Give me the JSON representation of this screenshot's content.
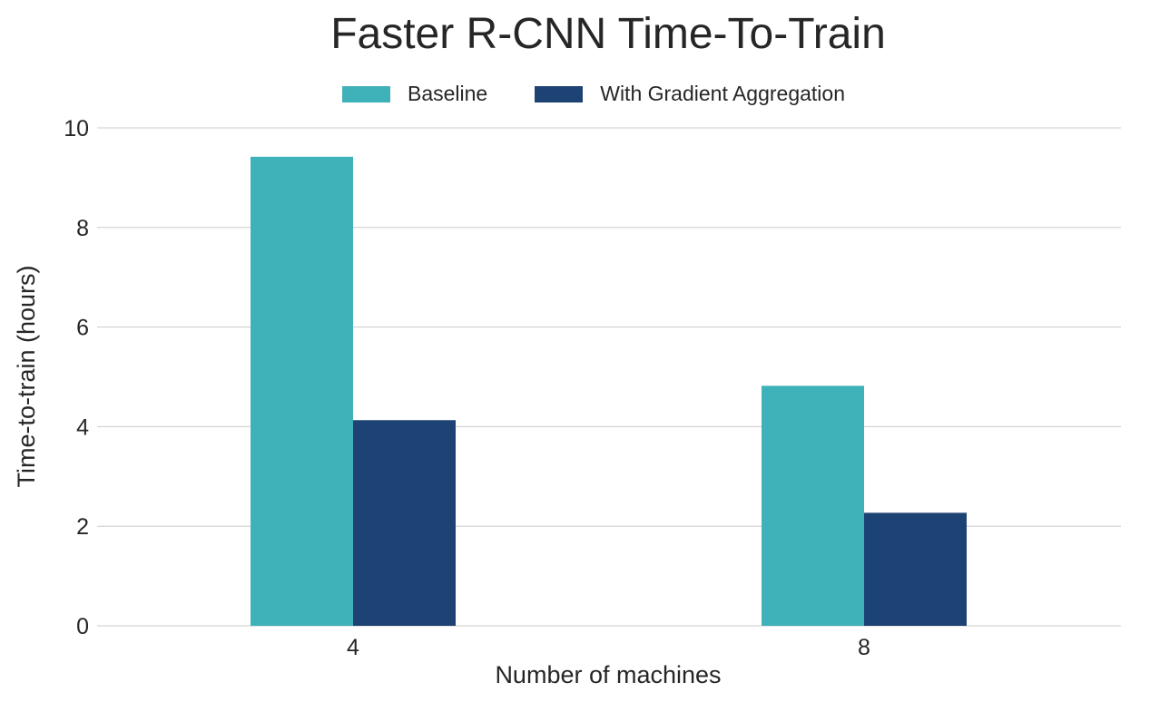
{
  "chart_data": {
    "type": "bar",
    "title": "Faster R-CNN Time-To-Train",
    "xlabel": "Number of machines",
    "ylabel": "Time-to-train (hours)",
    "categories": [
      "4",
      "8"
    ],
    "series": [
      {
        "name": "Baseline",
        "color": "#3fb1b8",
        "values": [
          9.42,
          4.82
        ]
      },
      {
        "name": "With Gradient Aggregation",
        "color": "#1c4374",
        "values": [
          4.13,
          2.27
        ]
      }
    ],
    "ylim": [
      0,
      10
    ],
    "yticks": [
      0,
      2,
      4,
      6,
      8,
      10
    ],
    "grid": "horizontal",
    "legend": "top-center"
  }
}
